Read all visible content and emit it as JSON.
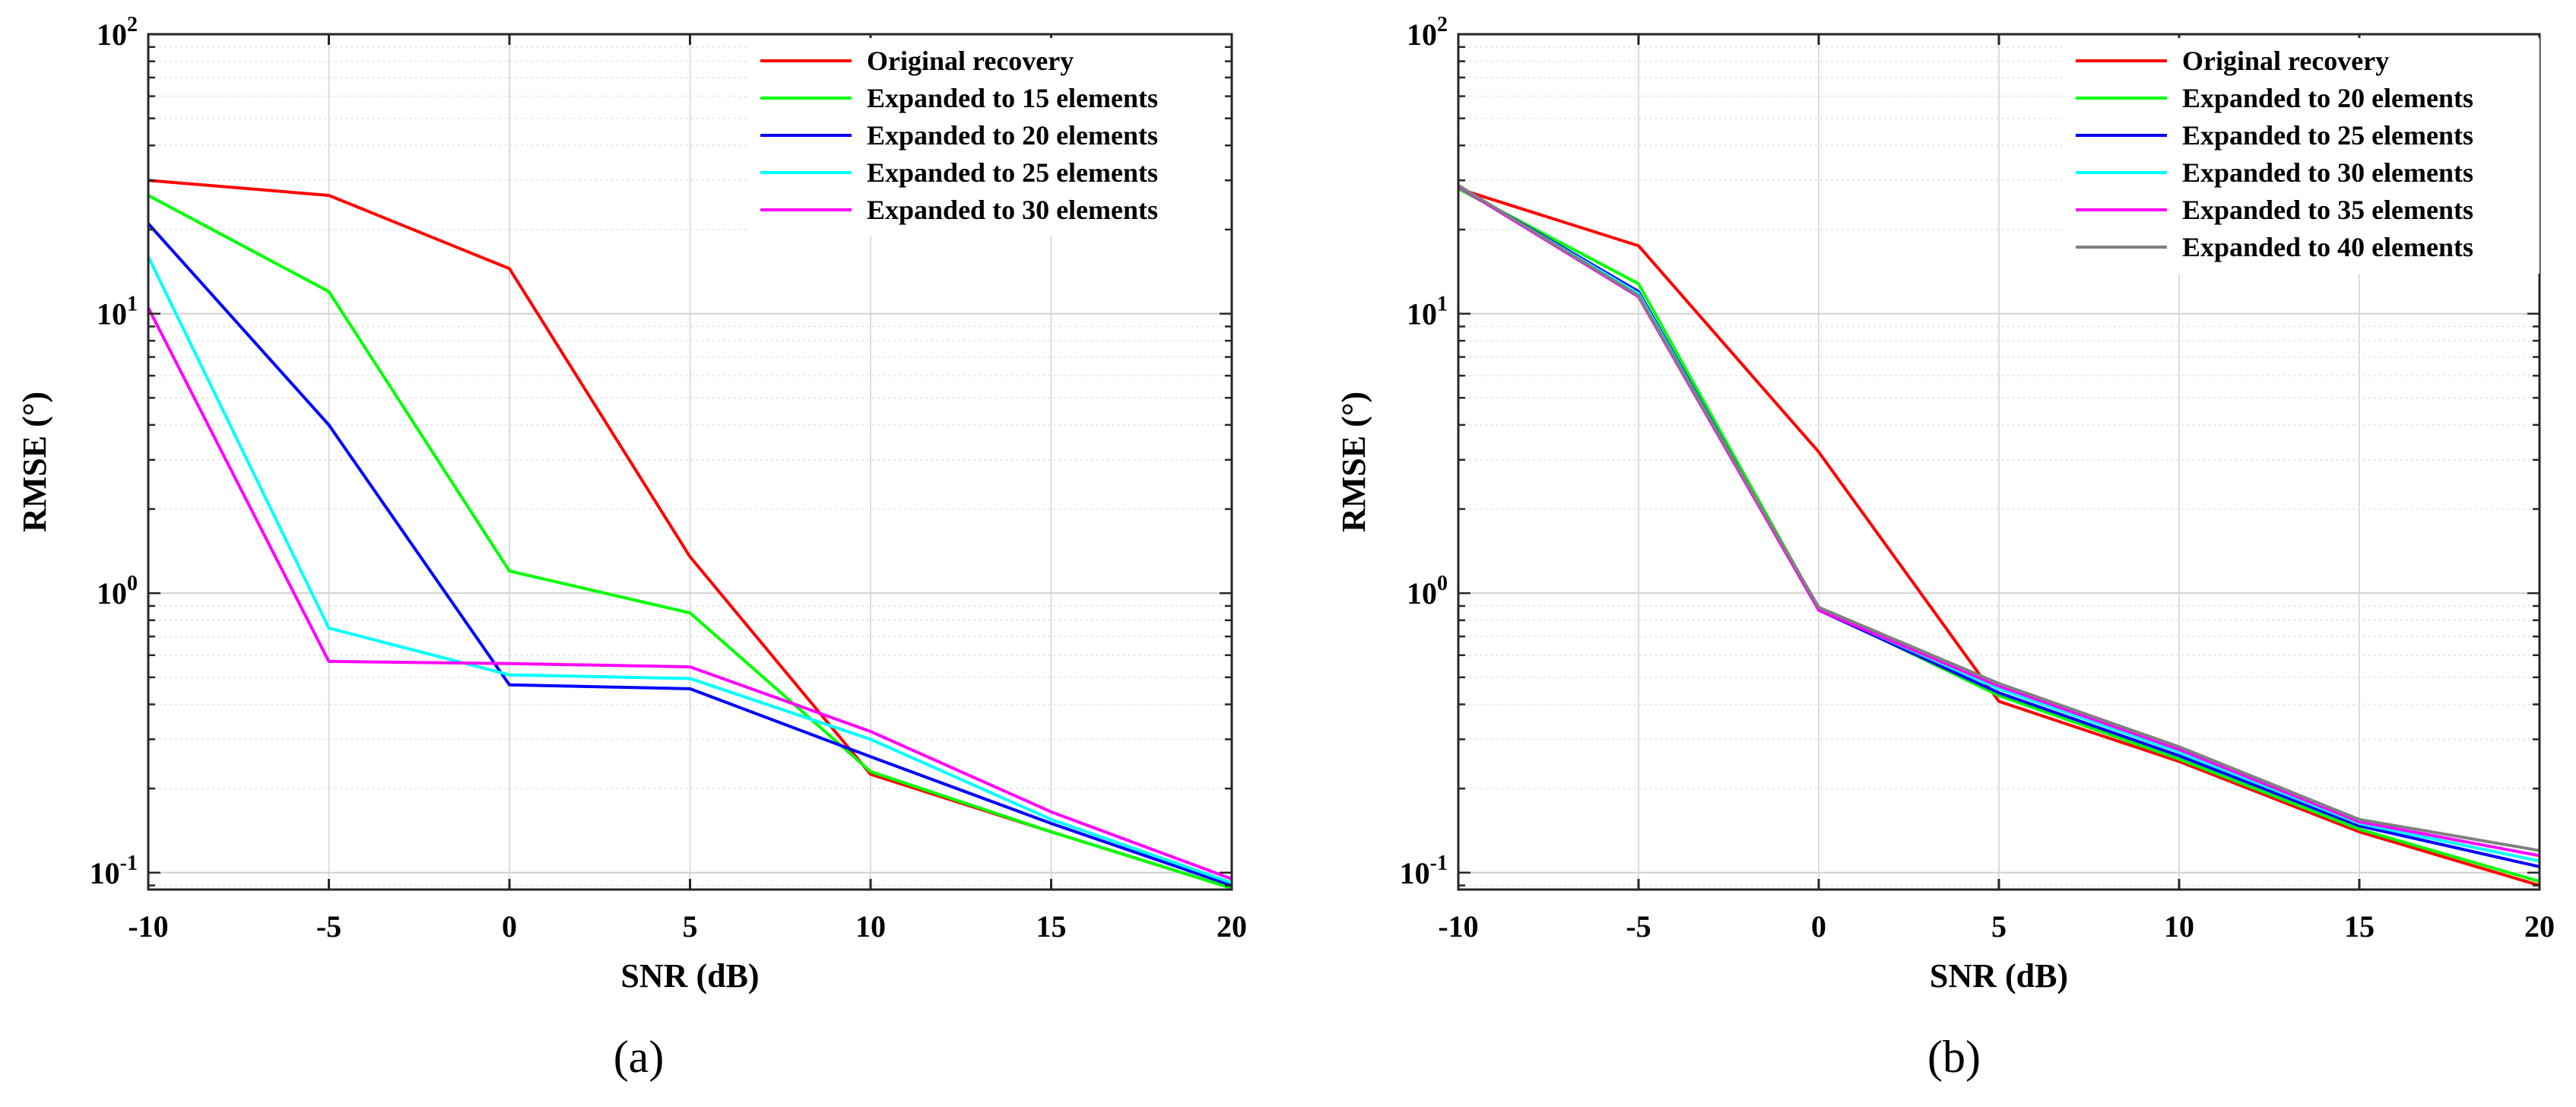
{
  "chart_data": [
    {
      "type": "line",
      "panel_label": "(a)",
      "xlabel": "SNR (dB)",
      "ylabel": "RMSE (°)",
      "yscale": "log",
      "xlim": [
        -10,
        20
      ],
      "ylim": [
        0.087,
        100
      ],
      "grid": true,
      "legend_position": "top-right",
      "x": [
        -10,
        -5,
        0,
        5,
        10,
        15,
        20
      ],
      "x_tick_labels": [
        "-10",
        "-5",
        "0",
        "5",
        "10",
        "15",
        "20"
      ],
      "y_ticks": [
        {
          "base": "10",
          "exp": "-1",
          "value": 0.1
        },
        {
          "base": "10",
          "exp": "0",
          "value": 1
        },
        {
          "base": "10",
          "exp": "1",
          "value": 10
        },
        {
          "base": "10",
          "exp": "2",
          "value": 100
        }
      ],
      "series": [
        {
          "name": "Original recovery",
          "color": "#ff0000",
          "values": [
            30,
            26.5,
            14.5,
            1.35,
            0.225,
            0.14,
            0.088
          ]
        },
        {
          "name": "Expanded to 15 elements",
          "color": "#00ff00",
          "values": [
            26.5,
            12,
            1.2,
            0.85,
            0.23,
            0.14,
            0.088
          ]
        },
        {
          "name": "Expanded to 20 elements",
          "color": "#0000ff",
          "values": [
            21,
            4,
            0.47,
            0.455,
            0.26,
            0.15,
            0.09
          ]
        },
        {
          "name": "Expanded to 25 elements",
          "color": "#00ffff",
          "values": [
            16,
            0.75,
            0.51,
            0.495,
            0.3,
            0.155,
            0.092
          ]
        },
        {
          "name": "Expanded to 30 elements",
          "color": "#ff00ff",
          "values": [
            10.5,
            0.57,
            0.56,
            0.545,
            0.32,
            0.165,
            0.095
          ]
        }
      ]
    },
    {
      "type": "line",
      "panel_label": "(b)",
      "xlabel": "SNR (dB)",
      "ylabel": "RMSE (°)",
      "yscale": "log",
      "xlim": [
        -10,
        20
      ],
      "ylim": [
        0.087,
        100
      ],
      "grid": true,
      "legend_position": "top-right",
      "x": [
        -10,
        -5,
        0,
        5,
        10,
        15,
        20
      ],
      "x_tick_labels": [
        "-10",
        "-5",
        "0",
        "5",
        "10",
        "15",
        "20"
      ],
      "y_ticks": [
        {
          "base": "10",
          "exp": "-1",
          "value": 0.1
        },
        {
          "base": "10",
          "exp": "0",
          "value": 1
        },
        {
          "base": "10",
          "exp": "1",
          "value": 10
        },
        {
          "base": "10",
          "exp": "2",
          "value": 100
        }
      ],
      "series": [
        {
          "name": "Original recovery",
          "color": "#ff0000",
          "values": [
            28,
            17.5,
            3.2,
            0.41,
            0.25,
            0.14,
            0.09
          ]
        },
        {
          "name": "Expanded to 20 elements",
          "color": "#00ff00",
          "values": [
            28,
            12.8,
            0.88,
            0.43,
            0.255,
            0.143,
            0.093
          ]
        },
        {
          "name": "Expanded to 25 elements",
          "color": "#0000ff",
          "values": [
            28.5,
            12,
            0.87,
            0.44,
            0.262,
            0.147,
            0.105
          ]
        },
        {
          "name": "Expanded to 30 elements",
          "color": "#00ffff",
          "values": [
            28.5,
            11.8,
            0.875,
            0.455,
            0.27,
            0.15,
            0.11
          ]
        },
        {
          "name": "Expanded to 35 elements",
          "color": "#ff00ff",
          "values": [
            28.5,
            11.5,
            0.87,
            0.465,
            0.276,
            0.152,
            0.115
          ]
        },
        {
          "name": "Expanded to 40 elements",
          "color": "#808080",
          "values": [
            28.8,
            11.6,
            0.89,
            0.475,
            0.282,
            0.155,
            0.12
          ]
        }
      ]
    }
  ]
}
